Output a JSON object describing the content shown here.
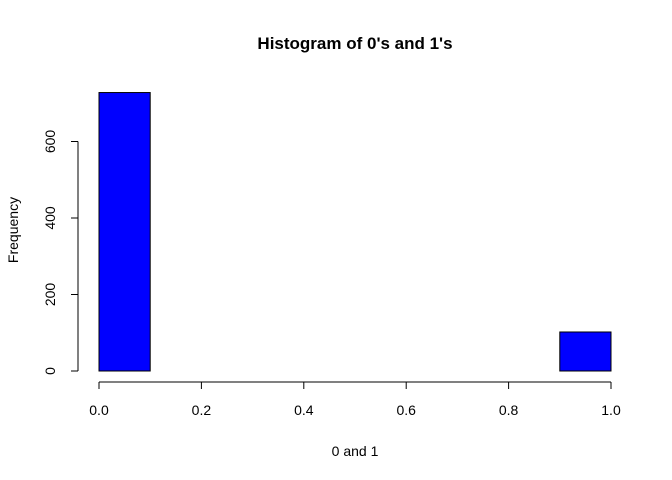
{
  "chart_data": {
    "type": "bar",
    "title": "Histogram of 0's and 1's",
    "xlabel": "0 and 1",
    "ylabel": "Frequency",
    "bins": [
      {
        "start": 0.0,
        "end": 0.1,
        "count": 728
      },
      {
        "start": 0.1,
        "end": 0.2,
        "count": 0
      },
      {
        "start": 0.2,
        "end": 0.3,
        "count": 0
      },
      {
        "start": 0.3,
        "end": 0.4,
        "count": 0
      },
      {
        "start": 0.4,
        "end": 0.5,
        "count": 0
      },
      {
        "start": 0.5,
        "end": 0.6,
        "count": 0
      },
      {
        "start": 0.6,
        "end": 0.7,
        "count": 0
      },
      {
        "start": 0.7,
        "end": 0.8,
        "count": 0
      },
      {
        "start": 0.8,
        "end": 0.9,
        "count": 0
      },
      {
        "start": 0.9,
        "end": 1.0,
        "count": 102
      }
    ],
    "xlim": [
      0,
      1
    ],
    "ylim": [
      0,
      728
    ],
    "xticks": [
      "0.0",
      "0.2",
      "0.4",
      "0.6",
      "0.8",
      "1.0"
    ],
    "yticks": [
      "0",
      "200",
      "400",
      "600"
    ],
    "bar_color": "#0000ff",
    "bar_edge_color": "#000000",
    "grid": false,
    "legend": "none"
  }
}
